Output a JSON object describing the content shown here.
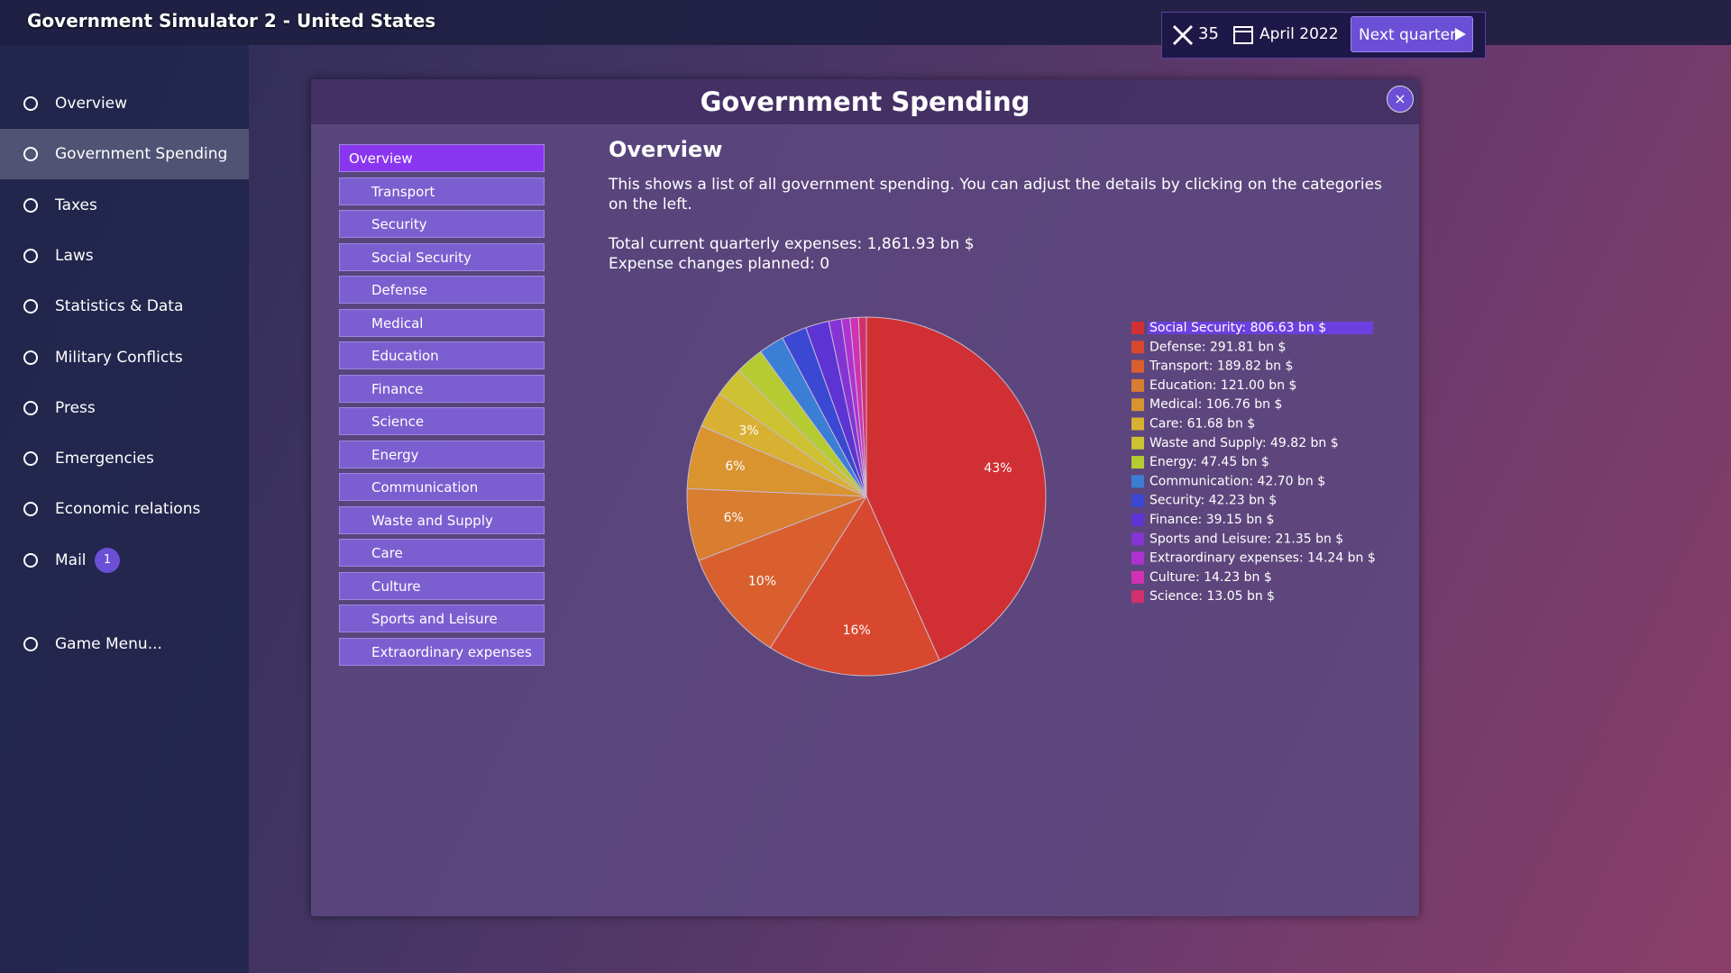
{
  "header": {
    "title": "Government Simulator 2 - United States"
  },
  "status": {
    "tools": 35,
    "date": "April 2022",
    "next_button": "Next quarter"
  },
  "sidebar": {
    "items": [
      "Overview",
      "Government Spending",
      "Taxes",
      "Laws",
      "Statistics & Data",
      "Military Conflicts",
      "Press",
      "Emergencies",
      "Economic relations",
      "Mail"
    ],
    "active": 1,
    "mail_badge": 1,
    "game_menu": "Game Menu..."
  },
  "dialog": {
    "title": "Government Spending",
    "close": "×",
    "categories": [
      "Overview",
      "Transport",
      "Security",
      "Social Security",
      "Defense",
      "Medical",
      "Education",
      "Finance",
      "Science",
      "Energy",
      "Communication",
      "Waste and Supply",
      "Care",
      "Culture",
      "Sports and Leisure",
      "Extraordinary expenses"
    ],
    "active_category": 0,
    "heading": "Overview",
    "description": "This shows a list of all government spending. You can adjust the details by clicking on the categories on the left.",
    "total": "Total current quarterly expenses: 1,861.93 bn $",
    "planned": "Expense changes planned: 0"
  },
  "chart_data": {
    "type": "pie",
    "categories": [
      "Social Security: 806.63 bn $",
      "Defense: 291.81 bn $",
      "Transport: 189.82 bn $",
      "Education: 121.00 bn $",
      "Medical: 106.76 bn $",
      "Care: 61.68 bn $",
      "Waste and Supply: 49.82 bn $",
      "Energy: 47.45 bn $",
      "Communication: 42.70 bn $",
      "Security: 42.23 bn $",
      "Finance: 39.15 bn $",
      "Sports and Leisure: 21.35 bn $",
      "Extraordinary expenses: 14.24 bn $",
      "Culture: 14.23 bn $",
      "Science: 13.05 bn $"
    ],
    "values": [
      806.63,
      291.81,
      189.82,
      121.0,
      106.76,
      61.68,
      49.82,
      47.45,
      42.7,
      42.23,
      39.15,
      21.35,
      14.24,
      14.23,
      13.05
    ],
    "slice_labels": [
      "43%",
      "16%",
      "10%",
      "6%",
      "6%",
      "3%",
      null,
      null,
      null,
      null,
      null,
      null,
      null,
      null,
      null
    ],
    "colors": [
      "#d03034",
      "#d8482e",
      "#d9602e",
      "#d97d30",
      "#d99430",
      "#d8b032",
      "#cdc232",
      "#b4cc32",
      "#3a7ed6",
      "#3a48d4",
      "#5c34d4",
      "#8434d4",
      "#ae32d0",
      "#d032b4",
      "#d0306c"
    ],
    "legend_highlight": 0
  }
}
